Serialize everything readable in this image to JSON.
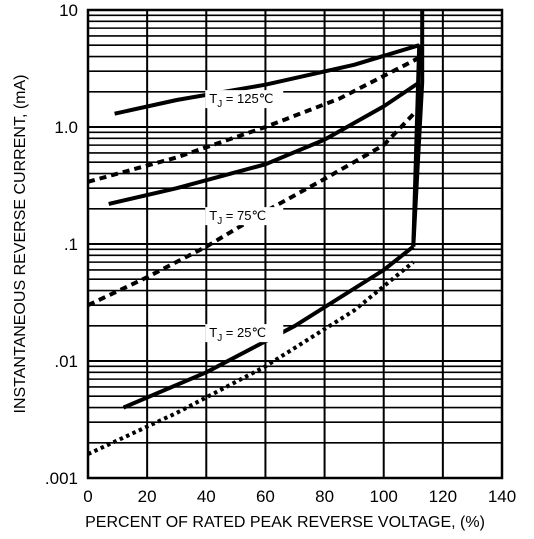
{
  "chart_data": {
    "type": "line",
    "title": "",
    "xlabel": "PERCENT OF RATED PEAK REVERSE VOLTAGE, (%)",
    "ylabel": "INSTANTANEOUS REVERSE CURRENT, (mA)",
    "xlim": [
      0,
      140
    ],
    "ylim": [
      0.001,
      10
    ],
    "y_scale": "log",
    "grid": true,
    "x_ticks": [
      0,
      20,
      40,
      60,
      80,
      100,
      120,
      140
    ],
    "x_tick_labels": [
      "0",
      "20",
      "40",
      "60",
      "80",
      "100",
      "120",
      "140"
    ],
    "y_ticks": [
      0.001,
      0.01,
      0.1,
      1,
      10
    ],
    "y_tick_labels": [
      ".001",
      ".01",
      ".1",
      "1.0",
      "10"
    ],
    "annotations": [
      {
        "text": "T",
        "sub": "J",
        "rest": " = 125℃",
        "x": 41,
        "y": 1.6
      },
      {
        "text": "T",
        "sub": "J",
        "rest": " = 75℃",
        "x": 41,
        "y": 0.16
      },
      {
        "text": "T",
        "sub": "J",
        "rest": " = 25℃",
        "x": 41,
        "y": 0.016
      }
    ],
    "series": [
      {
        "style": "solid",
        "x": [
          9,
          30,
          60,
          90,
          112
        ],
        "y": [
          1.3,
          1.7,
          2.3,
          3.4,
          5.0
        ]
      },
      {
        "style": "dashed",
        "x": [
          0,
          30,
          60,
          85,
          112
        ],
        "y": [
          0.34,
          0.55,
          1.0,
          1.75,
          3.9
        ]
      },
      {
        "style": "solid",
        "x": [
          7,
          30,
          60,
          80,
          100,
          112
        ],
        "y": [
          0.22,
          0.3,
          0.48,
          0.78,
          1.5,
          2.4
        ]
      },
      {
        "style": "dashed",
        "x": [
          0,
          20,
          40,
          60,
          80,
          100,
          112
        ],
        "y": [
          0.03,
          0.052,
          0.095,
          0.19,
          0.36,
          0.7,
          1.45
        ]
      },
      {
        "style": "solid",
        "x": [
          12,
          40,
          70,
          100,
          110
        ],
        "y": [
          0.004,
          0.008,
          0.02,
          0.06,
          0.095
        ]
      },
      {
        "style": "dotted",
        "x": [
          0,
          30,
          60,
          90,
          110
        ],
        "y": [
          0.0016,
          0.0036,
          0.009,
          0.027,
          0.07
        ]
      },
      {
        "style": "solid",
        "x": [
          110,
          113,
          113
        ],
        "y": [
          0.095,
          2.4,
          10
        ]
      },
      {
        "style": "solid",
        "x": [
          110,
          112
        ],
        "y": [
          0.095,
          5.0
        ]
      }
    ]
  }
}
